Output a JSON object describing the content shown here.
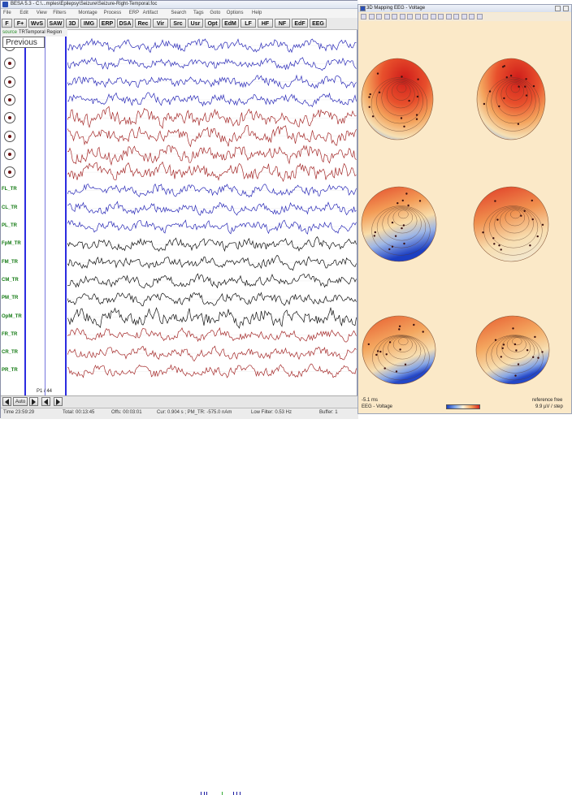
{
  "app": {
    "title": "BESA 5.3 - C:\\...mples\\Epilepsy\\Seizure\\Seizure-Right-Temporal.foc",
    "menu": [
      "File",
      "Edit",
      "View",
      "Filters",
      "Montage",
      "Process",
      "ERP",
      "Artifact",
      "Search",
      "Tags",
      "Goto",
      "Options",
      "Help"
    ]
  },
  "toolbar": [
    "F",
    "F+",
    "WvS",
    "SAW",
    "3D",
    "IMG",
    "ERP",
    "DSA",
    "Rec",
    "Vir",
    "Src",
    "Usr",
    "Opt",
    "EdM",
    "LF",
    "HF",
    "NF",
    "EdF",
    "EEG"
  ],
  "sourcebar": {
    "source": "source",
    "tr": "TR",
    "region": "Temporal Region"
  },
  "tooltip": "Previous",
  "channels": [
    {
      "label": "",
      "color": "#2b2bb8"
    },
    {
      "label": "",
      "color": "#2b2bb8"
    },
    {
      "label": "",
      "color": "#2b2bb8"
    },
    {
      "label": "",
      "color": "#2b2bb8"
    },
    {
      "label": "",
      "color": "#a52a2a"
    },
    {
      "label": "",
      "color": "#a52a2a"
    },
    {
      "label": "",
      "color": "#a52a2a"
    },
    {
      "label": "",
      "color": "#a52a2a"
    },
    {
      "label": "FL_TR",
      "color": "#2b2bb8"
    },
    {
      "label": "CL_TR",
      "color": "#2b2bb8"
    },
    {
      "label": "PL_TR",
      "color": "#2b2bb8"
    },
    {
      "label": "FpM_TR",
      "color": "#111111"
    },
    {
      "label": "FM_TR",
      "color": "#111111"
    },
    {
      "label": "CM_TR",
      "color": "#111111"
    },
    {
      "label": "PM_TR",
      "color": "#111111"
    },
    {
      "label": "OpM_TR",
      "color": "#111111"
    },
    {
      "label": "FR_TR",
      "color": "#a52a2a"
    },
    {
      "label": "CR_TR",
      "color": "#a52a2a"
    },
    {
      "label": "PR_TR",
      "color": "#a52a2a"
    }
  ],
  "page_indicator": "P1 / 44",
  "bottombar": {
    "auto": "Auto"
  },
  "status": {
    "time": "Time 23:59:29",
    "total": "Total: 00:13:45",
    "offs": "Offs: 00:03:01",
    "cur": "Cur: 0.904 s ; PM_TR: -575.0 nAm",
    "lowfilter": "Low Filter: 0.53 Hz",
    "buffer": "Buffer: 1"
  },
  "mapping": {
    "title": "3D Mapping EEG - Voltage",
    "latency": "-5.1 ms",
    "mode": "EEG - Voltage",
    "reference": "reference free",
    "scale": "9.9 µV / step"
  },
  "colors": {
    "accent_blue": "#2b2be0",
    "label_green": "#137a13",
    "map_bg": "#fbe9c8"
  }
}
